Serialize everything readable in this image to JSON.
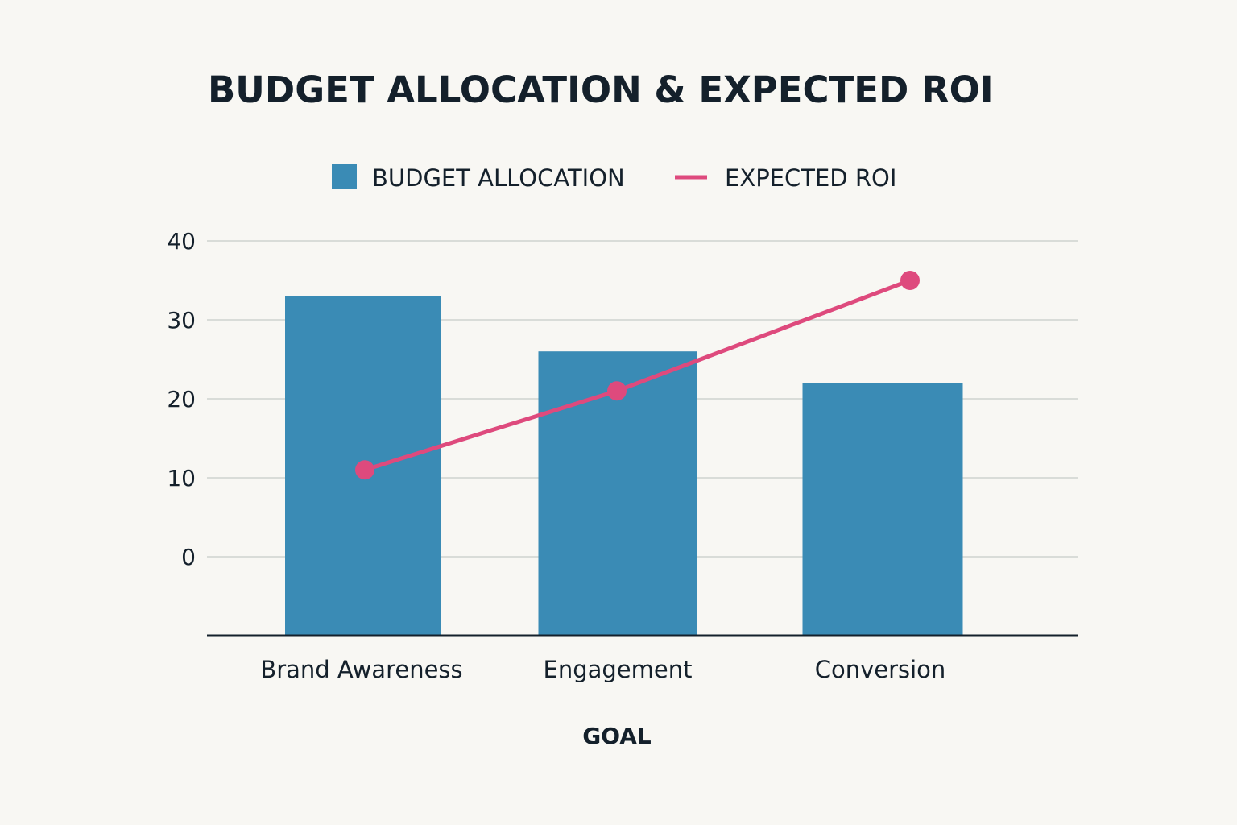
{
  "chart_data": {
    "type": "bar",
    "title": "BUDGET ALLOCATION & EXPECTED ROI",
    "xlabel": "GOAL",
    "ylabel": "",
    "categories": [
      "Brand Awareness",
      "Engagement",
      "Conversion"
    ],
    "series": [
      {
        "name": "BUDGET ALLOCATION",
        "type": "bar",
        "values": [
          33,
          26,
          22
        ],
        "color": "#3a8bb5"
      },
      {
        "name": "EXPECTED ROI",
        "type": "line",
        "values": [
          11,
          21,
          35
        ],
        "color": "#de4a7d"
      }
    ],
    "yticks": [
      "40",
      "30",
      "20",
      "10",
      "0"
    ],
    "ylim": [
      -10,
      40
    ],
    "grid": true,
    "legend_position": "top-center"
  }
}
